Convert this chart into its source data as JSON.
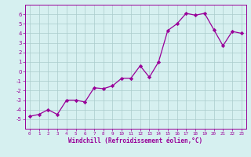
{
  "x": [
    0,
    1,
    2,
    3,
    4,
    5,
    6,
    7,
    8,
    9,
    10,
    11,
    12,
    13,
    14,
    15,
    16,
    17,
    18,
    19,
    20,
    21,
    22,
    23
  ],
  "y": [
    -4.7,
    -4.5,
    -4.0,
    -4.5,
    -3.0,
    -3.0,
    -3.2,
    -1.7,
    -1.8,
    -1.5,
    -0.7,
    -0.7,
    0.6,
    -0.6,
    1.0,
    4.3,
    5.0,
    6.1,
    5.9,
    6.1,
    4.4,
    2.7,
    4.2,
    4.0
  ],
  "line_color": "#990099",
  "marker": "D",
  "markersize": 2.2,
  "linewidth": 0.9,
  "xlabel": "Windchill (Refroidissement éolien,°C)",
  "xlabel_color": "#990099",
  "ylim": [
    -6,
    7
  ],
  "xlim": [
    -0.5,
    23.5
  ],
  "yticks": [
    -5,
    -4,
    -3,
    -2,
    -1,
    0,
    1,
    2,
    3,
    4,
    5,
    6
  ],
  "xticks": [
    0,
    1,
    2,
    3,
    4,
    5,
    6,
    7,
    8,
    9,
    10,
    11,
    12,
    13,
    14,
    15,
    16,
    17,
    18,
    19,
    20,
    21,
    22,
    23
  ],
  "bg_color": "#d6f0f0",
  "grid_color": "#aacccc",
  "tick_color": "#990099",
  "spine_color": "#990099",
  "xlabel_fontsize": 5.5,
  "xtick_fontsize": 4.2,
  "ytick_fontsize": 5.0
}
